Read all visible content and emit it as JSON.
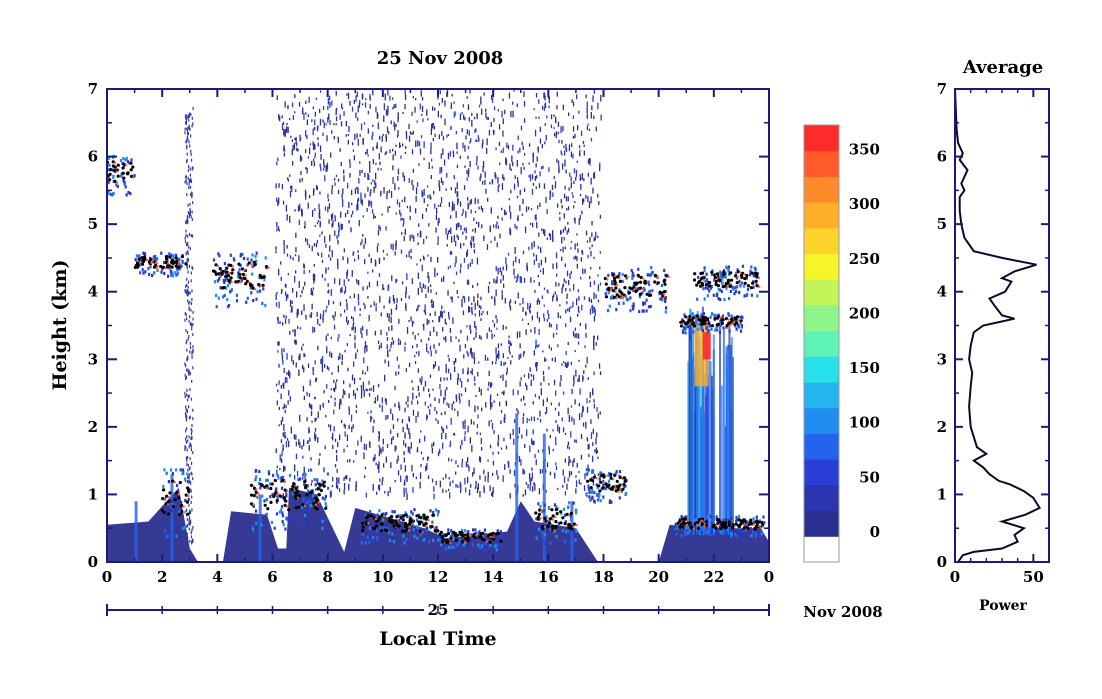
{
  "chart_data": [
    {
      "type": "heatmap",
      "title": "25 Nov 2008",
      "xlabel": "Local Time",
      "ylabel": "Height (km)",
      "x_ticks": [
        "0",
        "2",
        "4",
        "6",
        "8",
        "10",
        "12",
        "14",
        "16",
        "18",
        "20",
        "22",
        "0"
      ],
      "y_ticks": [
        "0",
        "1",
        "2",
        "3",
        "4",
        "5",
        "6",
        "7"
      ],
      "xlim": [
        0,
        24
      ],
      "ylim": [
        0,
        7
      ],
      "date_axis": {
        "day_label": "25",
        "month_label": "Nov 2008"
      },
      "colorbar": {
        "ticks": [
          "0",
          "50",
          "100",
          "150",
          "200",
          "250",
          "300",
          "350"
        ],
        "range": [
          0,
          380
        ],
        "colors": [
          "#ffffff",
          "#2b2f8f",
          "#2c34b0",
          "#2a3fd6",
          "#2463ee",
          "#1f8cf0",
          "#22b5ee",
          "#28e0e8",
          "#5ef2b8",
          "#8ff58a",
          "#c3f55a",
          "#f5f52a",
          "#ffd42a",
          "#ffae2a",
          "#ff8a2a",
          "#ff5a2a",
          "#ff2a2a"
        ]
      },
      "cloud_layers": [
        {
          "t0": 0.0,
          "t1": 1.0,
          "h0": 5.45,
          "h1": 6.05
        },
        {
          "t0": 1.0,
          "t1": 2.9,
          "h0": 4.25,
          "h1": 4.6
        },
        {
          "t0": 3.8,
          "t1": 5.8,
          "h0": 3.8,
          "h1": 4.6
        },
        {
          "t0": 2.0,
          "t1": 3.0,
          "h0": 0.4,
          "h1": 1.4
        },
        {
          "t0": 5.2,
          "t1": 8.0,
          "h0": 0.5,
          "h1": 1.4
        },
        {
          "t0": 9.2,
          "t1": 12.0,
          "h0": 0.3,
          "h1": 0.8
        },
        {
          "t0": 12.0,
          "t1": 14.3,
          "h0": 0.2,
          "h1": 0.5
        },
        {
          "t0": 15.5,
          "t1": 17.0,
          "h0": 0.3,
          "h1": 0.9
        },
        {
          "t0": 17.3,
          "t1": 18.8,
          "h0": 0.9,
          "h1": 1.4
        },
        {
          "t0": 18.0,
          "t1": 20.3,
          "h0": 3.7,
          "h1": 4.4
        },
        {
          "t0": 20.8,
          "t1": 23.0,
          "h0": 3.4,
          "h1": 3.7
        },
        {
          "t0": 21.3,
          "t1": 23.6,
          "h0": 3.9,
          "h1": 4.4
        },
        {
          "t0": 20.5,
          "t1": 23.8,
          "h0": 0.4,
          "h1": 0.7
        }
      ]
    },
    {
      "type": "line",
      "title": "Average",
      "xlabel": "Power",
      "x_ticks": [
        "0",
        "50"
      ],
      "y_ticks": [
        "0",
        "1",
        "2",
        "3",
        "4",
        "5",
        "6",
        "7"
      ],
      "xlim": [
        0,
        60
      ],
      "ylim": [
        0,
        7
      ],
      "x": [
        2,
        5,
        12,
        30,
        40,
        38,
        44,
        30,
        45,
        54,
        50,
        44,
        35,
        28,
        22,
        18,
        12,
        20,
        14,
        10,
        9,
        10,
        11,
        9,
        10,
        12,
        18,
        28,
        38,
        30,
        25,
        22,
        32,
        36,
        30,
        38,
        52,
        30,
        12,
        6,
        4,
        3,
        3,
        6,
        4,
        8,
        3,
        5,
        2,
        1,
        0
      ],
      "y": [
        0.0,
        0.1,
        0.15,
        0.2,
        0.3,
        0.4,
        0.5,
        0.6,
        0.7,
        0.8,
        0.95,
        1.05,
        1.15,
        1.2,
        1.3,
        1.4,
        1.5,
        1.6,
        1.7,
        2.0,
        2.3,
        2.6,
        2.8,
        3.0,
        3.2,
        3.4,
        3.5,
        3.55,
        3.6,
        3.65,
        3.8,
        3.9,
        4.0,
        4.15,
        4.2,
        4.3,
        4.4,
        4.5,
        4.6,
        4.8,
        5.0,
        5.2,
        5.4,
        5.5,
        5.6,
        5.8,
        5.95,
        6.05,
        6.2,
        6.4,
        7.0
      ]
    }
  ]
}
